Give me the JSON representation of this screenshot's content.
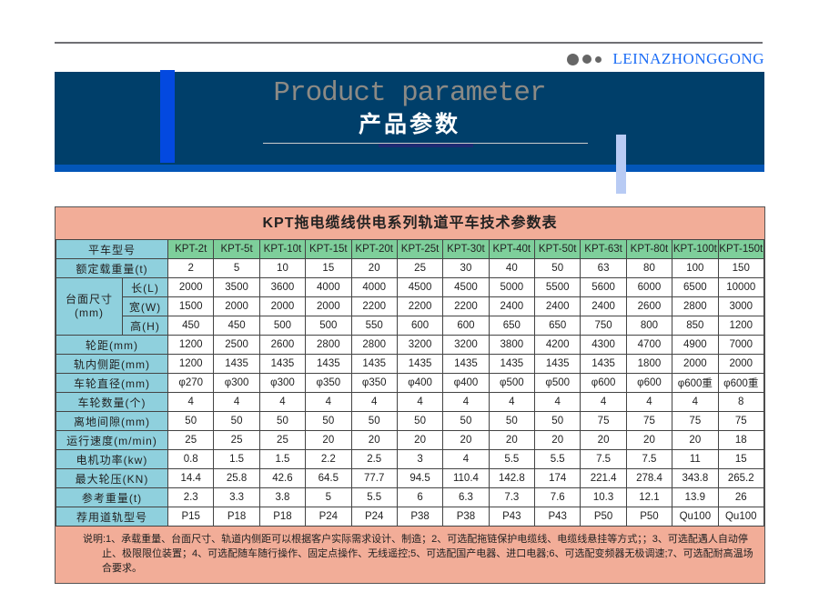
{
  "brand": {
    "text": "LEINAZHONGGONG",
    "color": "#1b6cf5"
  },
  "banner": {
    "title_en": "Product parameter",
    "title_cn": "产品参数",
    "bg_color": "#003f6a"
  },
  "table": {
    "title": "KPT拖电缆线供电系列轨道平车技术参数表",
    "header_label": "平车型号",
    "models": [
      "KPT-2t",
      "KPT-5t",
      "KPT-10t",
      "KPT-15t",
      "KPT-20t",
      "KPT-25t",
      "KPT-30t",
      "KPT-40t",
      "KPT-50t",
      "KPT-63t",
      "KPT-80t",
      "KPT-100t",
      "KPT-150t"
    ],
    "size_group_label": "台面尺寸(mm)",
    "rows": [
      {
        "label": "额定载重量(t)",
        "values": [
          "2",
          "5",
          "10",
          "15",
          "20",
          "25",
          "30",
          "40",
          "50",
          "63",
          "80",
          "100",
          "150"
        ]
      },
      {
        "label": "长(L)",
        "group": "size",
        "values": [
          "2000",
          "3500",
          "3600",
          "4000",
          "4000",
          "4500",
          "4500",
          "5000",
          "5500",
          "5600",
          "6000",
          "6500",
          "10000"
        ]
      },
      {
        "label": "宽(W)",
        "group": "size",
        "values": [
          "1500",
          "2000",
          "2000",
          "2000",
          "2200",
          "2200",
          "2200",
          "2400",
          "2400",
          "2400",
          "2600",
          "2800",
          "3000"
        ]
      },
      {
        "label": "高(H)",
        "group": "size",
        "values": [
          "450",
          "450",
          "500",
          "500",
          "550",
          "600",
          "600",
          "650",
          "650",
          "750",
          "800",
          "850",
          "1200"
        ]
      },
      {
        "label": "轮距(mm)",
        "values": [
          "1200",
          "2500",
          "2600",
          "2800",
          "2800",
          "3200",
          "3200",
          "3800",
          "4200",
          "4300",
          "4700",
          "4900",
          "7000"
        ]
      },
      {
        "label": "轨内侧距(mm)",
        "values": [
          "1200",
          "1435",
          "1435",
          "1435",
          "1435",
          "1435",
          "1435",
          "1435",
          "1435",
          "1435",
          "1800",
          "2000",
          "2000"
        ]
      },
      {
        "label": "车轮直径(mm)",
        "values": [
          "φ270",
          "φ300",
          "φ300",
          "φ350",
          "φ350",
          "φ400",
          "φ400",
          "φ500",
          "φ500",
          "φ600",
          "φ600",
          "φ600重",
          "φ600重"
        ]
      },
      {
        "label": "车轮数量(个)",
        "values": [
          "4",
          "4",
          "4",
          "4",
          "4",
          "4",
          "4",
          "4",
          "4",
          "4",
          "4",
          "4",
          "8"
        ]
      },
      {
        "label": "离地间隙(mm)",
        "values": [
          "50",
          "50",
          "50",
          "50",
          "50",
          "50",
          "50",
          "50",
          "50",
          "75",
          "75",
          "75",
          "75"
        ]
      },
      {
        "label": "运行速度(m/min)",
        "values": [
          "25",
          "25",
          "25",
          "20",
          "20",
          "20",
          "20",
          "20",
          "20",
          "20",
          "20",
          "20",
          "18"
        ]
      },
      {
        "label": "电机功率(kw)",
        "values": [
          "0.8",
          "1.5",
          "1.5",
          "2.2",
          "2.5",
          "3",
          "4",
          "5.5",
          "5.5",
          "7.5",
          "7.5",
          "11",
          "15"
        ]
      },
      {
        "label": "最大轮压(KN)",
        "values": [
          "14.4",
          "25.8",
          "42.6",
          "64.5",
          "77.7",
          "94.5",
          "110.4",
          "142.8",
          "174",
          "221.4",
          "278.4",
          "343.8",
          "265.2"
        ]
      },
      {
        "label": "参考重量(t)",
        "values": [
          "2.3",
          "3.3",
          "3.8",
          "5",
          "5.5",
          "6",
          "6.3",
          "7.3",
          "7.6",
          "10.3",
          "12.1",
          "13.9",
          "26"
        ]
      },
      {
        "label": "荐用道轨型号",
        "values": [
          "P15",
          "P18",
          "P18",
          "P24",
          "P24",
          "P38",
          "P38",
          "P43",
          "P43",
          "P50",
          "P50",
          "Qu100",
          "Qu100"
        ]
      }
    ],
    "notes": "说明:1、承载重量、台面尺寸、轨道内侧距可以根据客户实际需求设计、制造；2、可选配拖链保护电缆线、电缆线悬挂等方式；；3、可选配遇人自动停止、极限限位装置；4、可选配随车随行操作、固定点操作、无线遥控;5、可选配国产电器、进口电器;6、可选配变频器无极调速;7、可选配耐高温场合要求。"
  }
}
